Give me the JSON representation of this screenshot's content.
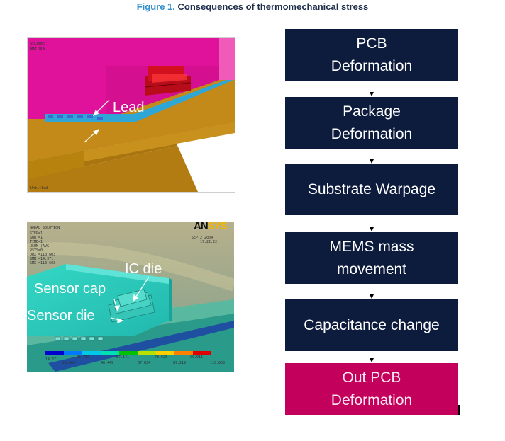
{
  "figure": {
    "caption_prefix": "Figure 1.",
    "caption_text": "Consequences of thermomechanical stress"
  },
  "flow": {
    "steps": [
      {
        "label": "PCB\nDeformation"
      },
      {
        "label": "Package\nDeformation"
      },
      {
        "label": "Substrate Warpage"
      },
      {
        "label": "MEMS mass\nmovement"
      },
      {
        "label": "Capacitance change"
      },
      {
        "label": "Out PCB\nDeformation"
      }
    ]
  },
  "top_panel": {
    "callout_lead": "Lead"
  },
  "bottom_panel": {
    "brand_an": "AN",
    "brand_sys": "SYS",
    "callout_ic_die": "IC die",
    "callout_sensor_cap": "Sensor cap",
    "callout_sensor_die": "Sensor die"
  },
  "colors": {
    "box_dark": "#0d1b3d",
    "box_final": "#c3005b",
    "package_magenta": "#e0129b",
    "substrate_gold": "#c38a1a"
  },
  "icons": [
    "arrow-down-icon",
    "callout-arrow-icon"
  ]
}
